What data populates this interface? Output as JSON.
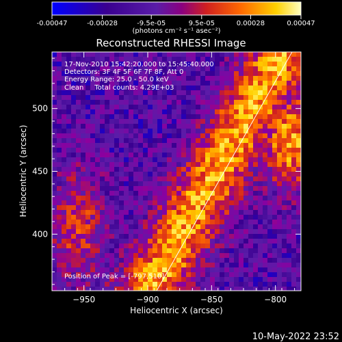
{
  "chart_data": {
    "type": "heatmap",
    "title": "Reconstructed RHESSI Image",
    "xlabel": "Heliocentric X (arcsec)",
    "ylabel": "Heliocentric Y (arcsec)",
    "xlim": [
      -975,
      -780
    ],
    "ylim": [
      355,
      545
    ],
    "x_ticks": [
      -950,
      -900,
      -850,
      -800
    ],
    "y_ticks": [
      400,
      450,
      500
    ],
    "colorbar": {
      "range": [
        -0.00047,
        0.00047
      ],
      "tick_values": [
        -0.00047,
        -0.00028,
        -9.5e-05,
        9.5e-05,
        0.00028,
        0.00047
      ],
      "tick_labels": [
        "-0.00047",
        "-0.00028",
        "-9.5e-05",
        "9.5e-05",
        "0.00028",
        "0.00047"
      ],
      "unit_label": "(photons cm⁻² s⁻¹ asec⁻²)"
    },
    "annotations": [
      "17-Nov-2010 15:42:20.000 to 15:45:40.000",
      "Detectors: 3F 4F 5F 6F 7F 8F, Att 0",
      "Energy Range: 25.0 - 50.0 keV",
      "Clean     Total counts: 4.29E+03",
      "Position of Peak = [-797,510]"
    ],
    "peak_position": [
      -797,
      510
    ],
    "grid": false,
    "timestamp": "10-May-2022 23:52"
  },
  "colors": {
    "background": "#000000",
    "foreground": "#ffffff",
    "colormap": [
      "#0000ff",
      "#3a0090",
      "#5a1ca8",
      "#8a00a0",
      "#d02020",
      "#ff6a00",
      "#ffd000",
      "#ffff90"
    ]
  }
}
